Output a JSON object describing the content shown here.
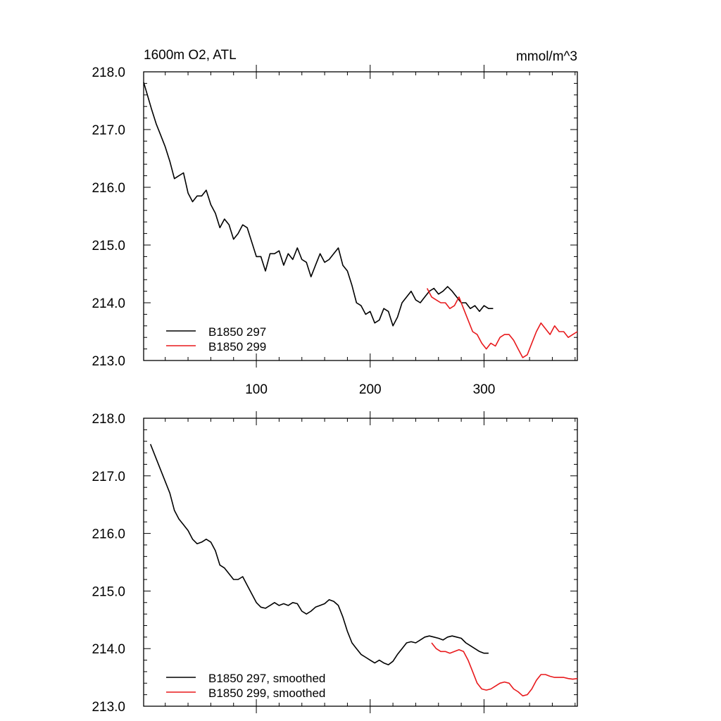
{
  "chart_data": [
    {
      "type": "line",
      "title_left": "1600m O2, ATL",
      "title_right": "mmol/m^3",
      "xlim": [
        1,
        382
      ],
      "ylim": [
        213.0,
        218.0
      ],
      "x_ticks": [
        100,
        200,
        300
      ],
      "x_tick_labels": [
        "100",
        "200",
        "300"
      ],
      "y_ticks": [
        213.0,
        214.0,
        215.0,
        216.0,
        217.0,
        218.0
      ],
      "y_tick_labels": [
        "213.0",
        "214.0",
        "215.0",
        "216.0",
        "217.0",
        "218.0"
      ],
      "legend_position": "bottom-left",
      "series": [
        {
          "name": "B1850 297",
          "color": "#000000",
          "x": [
            1,
            5,
            8,
            12,
            16,
            20,
            24,
            28,
            32,
            36,
            40,
            44,
            48,
            52,
            56,
            60,
            64,
            68,
            72,
            76,
            80,
            84,
            88,
            92,
            96,
            100,
            104,
            108,
            112,
            116,
            120,
            124,
            128,
            132,
            136,
            140,
            144,
            148,
            152,
            156,
            160,
            164,
            168,
            172,
            176,
            180,
            184,
            188,
            192,
            196,
            200,
            204,
            208,
            212,
            216,
            220,
            224,
            228,
            232,
            236,
            240,
            244,
            248,
            252,
            256,
            260,
            264,
            268,
            272,
            276,
            280,
            284,
            288,
            292,
            296,
            300,
            304,
            308
          ],
          "values": [
            217.82,
            217.55,
            217.35,
            217.1,
            216.9,
            216.7,
            216.45,
            216.15,
            216.2,
            216.25,
            215.9,
            215.75,
            215.85,
            215.85,
            215.95,
            215.7,
            215.55,
            215.3,
            215.45,
            215.35,
            215.1,
            215.2,
            215.35,
            215.3,
            215.05,
            214.8,
            214.8,
            214.55,
            214.85,
            214.85,
            214.9,
            214.65,
            214.85,
            214.75,
            214.95,
            214.75,
            214.7,
            214.45,
            214.65,
            214.85,
            214.7,
            214.75,
            214.85,
            214.95,
            214.65,
            214.55,
            214.3,
            214.0,
            213.95,
            213.8,
            213.85,
            213.65,
            213.7,
            213.9,
            213.85,
            213.6,
            213.75,
            214.0,
            214.1,
            214.2,
            214.05,
            214.0,
            214.1,
            214.2,
            214.25,
            214.15,
            214.2,
            214.28,
            214.2,
            214.1,
            214.0,
            214.0,
            213.9,
            213.95,
            213.85,
            213.95,
            213.9,
            213.9
          ]
        },
        {
          "name": "B1850 299",
          "color": "#e8191c",
          "x": [
            250,
            254,
            258,
            262,
            266,
            270,
            274,
            278,
            282,
            286,
            290,
            294,
            298,
            302,
            306,
            310,
            314,
            318,
            322,
            326,
            330,
            334,
            338,
            342,
            346,
            350,
            354,
            358,
            362,
            366,
            370,
            374,
            378,
            382
          ],
          "values": [
            214.25,
            214.1,
            214.05,
            214.0,
            214.0,
            213.9,
            213.95,
            214.1,
            213.9,
            213.7,
            213.5,
            213.45,
            213.3,
            213.2,
            213.3,
            213.25,
            213.4,
            213.45,
            213.45,
            213.35,
            213.2,
            213.05,
            213.1,
            213.3,
            213.5,
            213.65,
            213.55,
            213.45,
            213.6,
            213.5,
            213.5,
            213.4,
            213.45,
            213.5
          ]
        }
      ]
    },
    {
      "type": "line",
      "xlim": [
        1,
        382
      ],
      "ylim": [
        213.0,
        218.0
      ],
      "x_ticks": [
        100,
        200,
        300
      ],
      "x_tick_labels": [],
      "y_ticks": [
        213.0,
        214.0,
        215.0,
        216.0,
        217.0,
        218.0
      ],
      "y_tick_labels": [
        "213.0",
        "214.0",
        "215.0",
        "216.0",
        "217.0",
        "218.0"
      ],
      "legend_position": "bottom-left",
      "series": [
        {
          "name": "B1850 297, smoothed",
          "color": "#000000",
          "x": [
            7,
            12,
            18,
            24,
            28,
            32,
            36,
            40,
            44,
            48,
            52,
            56,
            60,
            64,
            68,
            72,
            76,
            80,
            84,
            88,
            92,
            96,
            100,
            104,
            108,
            112,
            116,
            120,
            124,
            128,
            132,
            136,
            140,
            144,
            148,
            152,
            156,
            160,
            164,
            168,
            172,
            176,
            180,
            184,
            188,
            192,
            196,
            200,
            204,
            208,
            212,
            216,
            220,
            224,
            228,
            232,
            236,
            240,
            244,
            248,
            252,
            256,
            260,
            264,
            268,
            272,
            276,
            280,
            284,
            288,
            292,
            296,
            300,
            304
          ],
          "values": [
            217.55,
            217.3,
            217.0,
            216.7,
            216.4,
            216.25,
            216.15,
            216.05,
            215.9,
            215.82,
            215.85,
            215.9,
            215.85,
            215.7,
            215.45,
            215.4,
            215.3,
            215.2,
            215.2,
            215.25,
            215.1,
            214.95,
            214.8,
            214.72,
            214.7,
            214.75,
            214.8,
            214.75,
            214.78,
            214.75,
            214.8,
            214.78,
            214.65,
            214.6,
            214.65,
            214.72,
            214.75,
            214.78,
            214.85,
            214.82,
            214.75,
            214.55,
            214.3,
            214.1,
            214.0,
            213.9,
            213.85,
            213.8,
            213.75,
            213.8,
            213.75,
            213.72,
            213.78,
            213.9,
            214.0,
            214.1,
            214.12,
            214.1,
            214.15,
            214.2,
            214.22,
            214.2,
            214.18,
            214.15,
            214.2,
            214.22,
            214.2,
            214.18,
            214.1,
            214.05,
            214.0,
            213.95,
            213.92,
            213.92
          ]
        },
        {
          "name": "B1850 299, smoothed",
          "color": "#e8191c",
          "x": [
            254,
            258,
            262,
            266,
            270,
            274,
            278,
            282,
            286,
            290,
            294,
            298,
            302,
            306,
            310,
            314,
            318,
            322,
            326,
            330,
            334,
            338,
            342,
            346,
            350,
            354,
            358,
            362,
            366,
            370,
            374,
            378,
            382
          ],
          "values": [
            214.1,
            214.0,
            213.95,
            213.95,
            213.92,
            213.95,
            213.98,
            213.95,
            213.8,
            213.6,
            213.4,
            213.3,
            213.28,
            213.3,
            213.35,
            213.4,
            213.42,
            213.4,
            213.3,
            213.25,
            213.18,
            213.2,
            213.3,
            213.45,
            213.55,
            213.55,
            213.52,
            213.5,
            213.5,
            213.5,
            213.48,
            213.47,
            213.48
          ]
        }
      ]
    }
  ]
}
